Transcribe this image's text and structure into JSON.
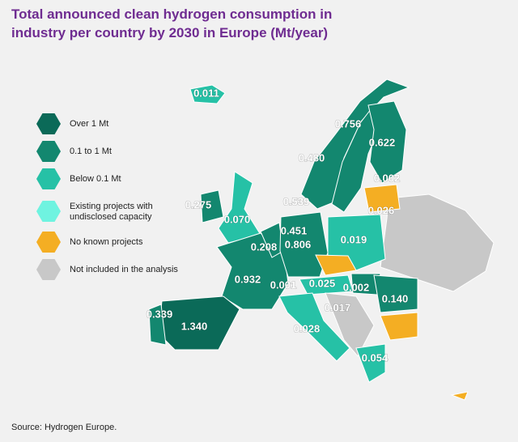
{
  "title": "Total announced clean hydrogen consumption in industry per country by 2030 in Europe (Mt/year)",
  "legend": [
    {
      "label": "Over 1 Mt",
      "color": "#0b6a58"
    },
    {
      "label": "0.1 to 1 Mt",
      "color": "#13876f"
    },
    {
      "label": "Below 0.1 Mt",
      "color": "#26c1a6"
    },
    {
      "label": "Existing projects with undisclosed capacity",
      "color": "#6ff3e0"
    },
    {
      "label": "No known projects",
      "color": "#f4ae23"
    },
    {
      "label": "Not included in the analysis",
      "color": "#c8c8c8"
    }
  ],
  "labels": [
    "0.011",
    "0.756",
    "0.622",
    "0.480",
    "0.002",
    "0.539",
    "0.275",
    "0.026",
    "0.070",
    "0.451",
    "0.208",
    "0.806",
    "0.019",
    "0.932",
    "0.001",
    "0.025",
    "0.002",
    "0.140",
    "0.339",
    "1.340",
    "0.017",
    "0.028",
    "0.054"
  ],
  "source": "Source: Hydrogen Europe."
}
